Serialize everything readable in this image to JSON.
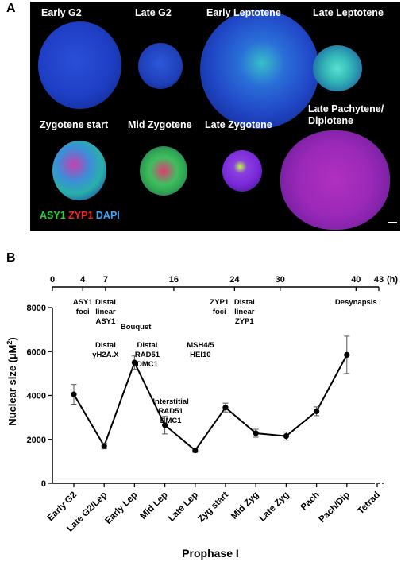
{
  "panels": {
    "a": "A",
    "b": "B"
  },
  "micrographs": {
    "row1": [
      "Early G2",
      "Late G2",
      "Early Leptotene",
      "Late Leptotene"
    ],
    "row2": [
      "Zygotene start",
      "Mid Zygotene",
      "Late Zygotene",
      "Late Pachytene/",
      "Diplotene"
    ],
    "legend": [
      {
        "text": "ASY1",
        "color": "#22d62a"
      },
      {
        "text": "ZYP1",
        "color": "#ff2020"
      },
      {
        "text": "DAPI",
        "color": "#35a8ff"
      }
    ]
  },
  "chart_data": {
    "type": "line",
    "categories": [
      "Early G2",
      "Late G2/Lep",
      "Early Lep",
      "Mid Lep",
      "Late Lep",
      "Zyg start",
      "Mid Zyg",
      "Late Zyg",
      "Pach",
      "Pach/Dip",
      "Tetrad"
    ],
    "values": [
      4050,
      1700,
      5500,
      2650,
      1500,
      3450,
      2280,
      2150,
      3280,
      5850,
      null
    ],
    "errors": [
      450,
      130,
      300,
      400,
      90,
      200,
      180,
      180,
      200,
      850,
      null
    ],
    "ylabel": "Nuclear size (µM",
    "ylabel_sup": "2",
    "ylabel_close": ")",
    "xlabel": "Prophase I",
    "ylim": [
      0,
      8000
    ],
    "yticks": [
      "0",
      "2000",
      "4000",
      "6000",
      "8000"
    ],
    "time_axis": {
      "unit": "(h)",
      "ticks": [
        {
          "t": 0,
          "label": "0"
        },
        {
          "t": 4,
          "label": "4"
        },
        {
          "t": 7,
          "label": "7"
        },
        {
          "t": 16,
          "label": "16"
        },
        {
          "t": 24,
          "label": "24"
        },
        {
          "t": 30,
          "label": "30"
        },
        {
          "t": 40,
          "label": "40"
        },
        {
          "t": 43,
          "label": "43"
        }
      ],
      "range": [
        0,
        43
      ]
    },
    "annotations": [
      {
        "lines": [
          "ASY1",
          "foci"
        ],
        "t": 4,
        "row": 0
      },
      {
        "lines": [
          "Distal",
          "linear",
          "ASY1"
        ],
        "t": 7,
        "row": 0
      },
      {
        "lines": [
          "Bouquet"
        ],
        "t": 11,
        "row": 1
      },
      {
        "lines": [
          "Distal",
          "γH2A.X"
        ],
        "t": 7,
        "row": 2
      },
      {
        "lines": [
          "Distal",
          "RAD51",
          "DMC1"
        ],
        "t": 12.5,
        "row": 2
      },
      {
        "lines": [
          "MSH4/5",
          "HEI10"
        ],
        "t": 19.5,
        "row": 2
      },
      {
        "lines": [
          "ZYP1",
          "foci"
        ],
        "t": 22,
        "row": 0
      },
      {
        "lines": [
          "Distal",
          "linear",
          "ZYP1"
        ],
        "t": 25.3,
        "row": 0
      },
      {
        "lines": [
          "Desynapsis"
        ],
        "t": 40,
        "row": 0
      },
      {
        "lines": [
          "Interstitial",
          "RAD51",
          "DMC1"
        ],
        "t": 15.6,
        "row": 3
      }
    ]
  }
}
